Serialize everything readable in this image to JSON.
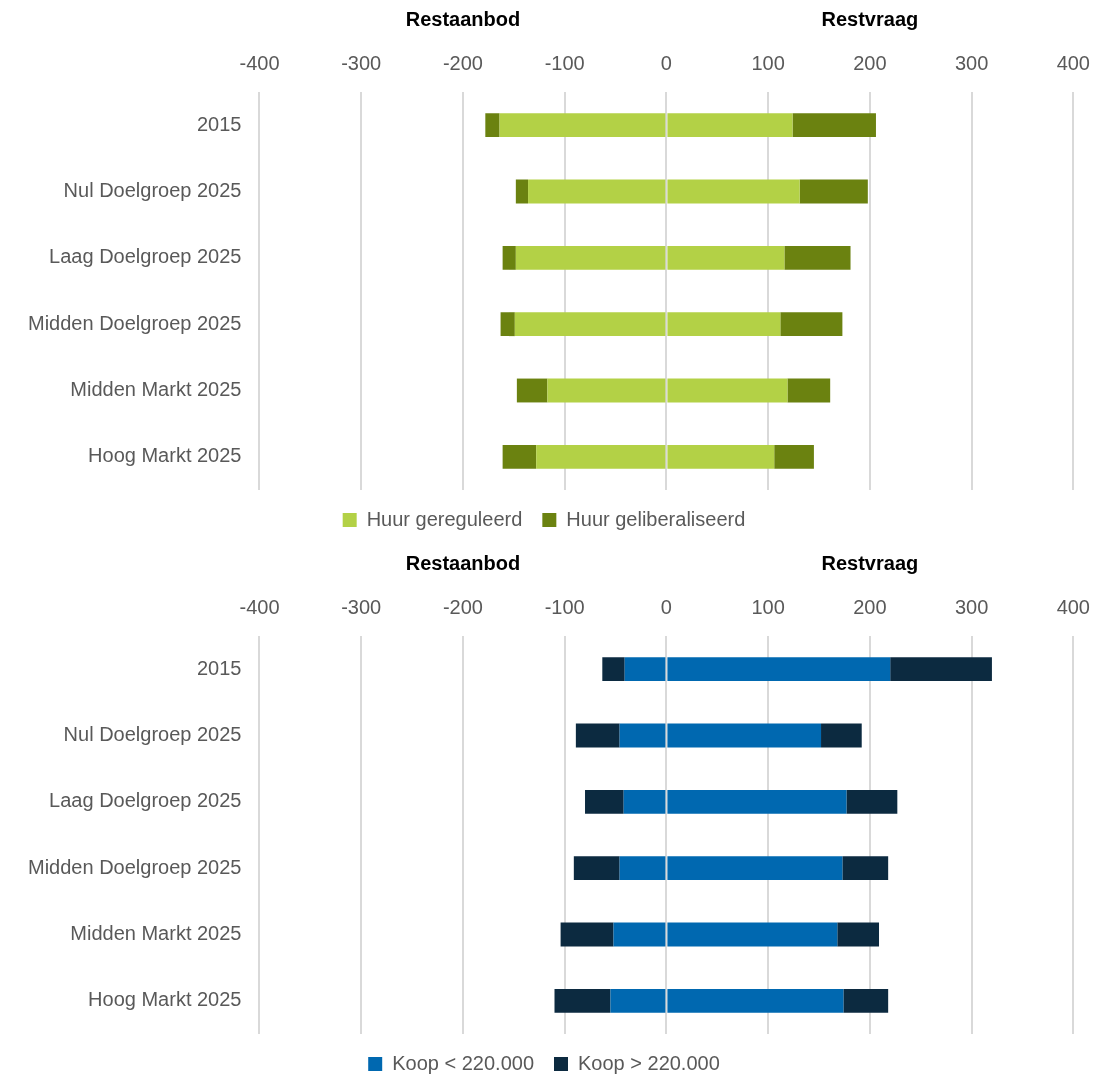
{
  "chart_data": [
    {
      "type": "bar",
      "orientation": "horizontal",
      "stacked": true,
      "annotations": [
        "Restaanbod",
        "Restvraag"
      ],
      "categories": [
        "2015",
        "Nul Doelgroep 2025",
        "Laag Doelgroep 2025",
        "Midden Doelgroep 2025",
        "Midden Markt 2025",
        "Hoog Markt 2025"
      ],
      "series": [
        {
          "name": "Huur gereguleerd",
          "color": "#b3d146",
          "values": [
            124,
            131,
            116,
            112,
            119,
            106
          ]
        },
        {
          "name": "Huur geliberaliseerd",
          "color": "#6b8210",
          "values": [
            82,
            67,
            65,
            61,
            42,
            39
          ]
        },
        {
          "color": "#b3d146",
          "values": [
            -164,
            -136,
            -148,
            -149,
            -117,
            -128
          ]
        },
        {
          "color": "#6b8210",
          "values": [
            -14,
            -12,
            -13,
            -14,
            -30,
            -33
          ]
        }
      ],
      "xlim": [
        -400,
        400
      ],
      "xticks": [
        -400,
        -300,
        -200,
        -100,
        0,
        100,
        200,
        300,
        400
      ],
      "grid": "x",
      "legend": "bottom"
    },
    {
      "type": "bar",
      "orientation": "horizontal",
      "stacked": true,
      "annotations": [
        "Restaanbod",
        "Restvraag"
      ],
      "categories": [
        "2015",
        "Nul Doelgroep 2025",
        "Laag Doelgroep 2025",
        "Midden Doelgroep 2025",
        "Midden Markt 2025",
        "Hoog Markt 2025"
      ],
      "series": [
        {
          "name": "Koop < 220.000",
          "color": "#0068b0",
          "values": [
            220,
            152,
            177,
            173,
            168,
            174
          ]
        },
        {
          "name": "Koop > 220.000",
          "color": "#0c2a40",
          "values": [
            100,
            40,
            50,
            45,
            41,
            44
          ]
        },
        {
          "color": "#0068b0",
          "values": [
            -41,
            -46,
            -42,
            -46,
            -52,
            -55
          ]
        },
        {
          "color": "#0c2a40",
          "values": [
            -22,
            -43,
            -38,
            -45,
            -52,
            -55
          ]
        }
      ],
      "xlim": [
        -400,
        400
      ],
      "xticks": [
        -400,
        -300,
        -200,
        -100,
        0,
        100,
        200,
        300,
        400
      ],
      "grid": "x",
      "legend": "bottom"
    }
  ]
}
